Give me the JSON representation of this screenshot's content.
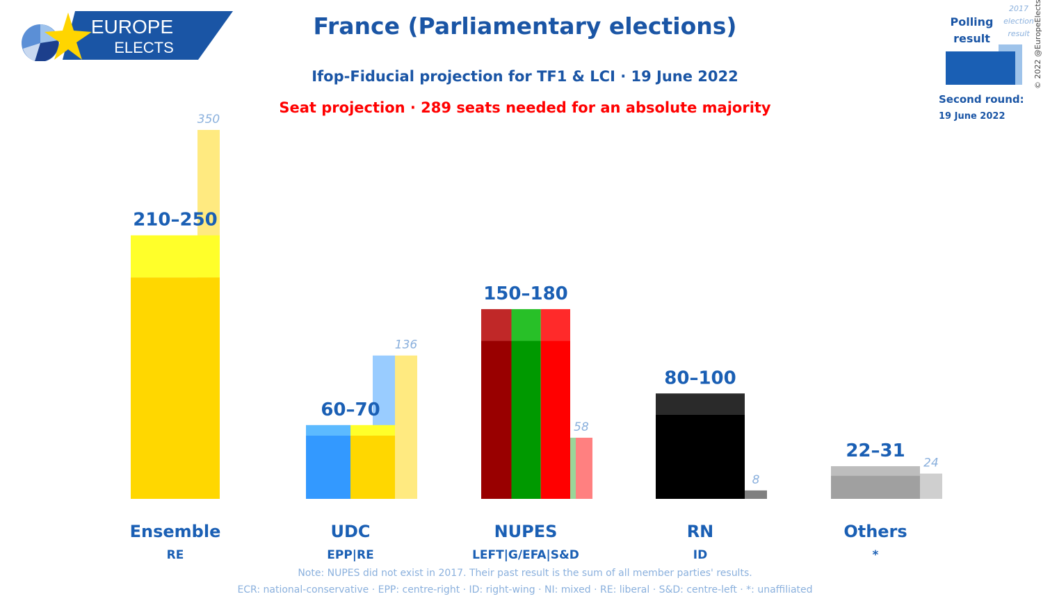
{
  "header": {
    "logo_line1": "EUROPE",
    "logo_line2": "ELECTS",
    "title": "France (Parliamentary elections)",
    "subtitle": "Ifop-Fiducial projection for TF1 & LCI · 19 June 2022",
    "majority_note": "Seat projection · 289 seats needed for an absolute majority"
  },
  "legend": {
    "polling_label": "Polling result",
    "past_label": "2017 election result",
    "second_round_label": "Second round:",
    "second_round_date": "19 June 2022",
    "copyright": "© 2022 @EuropeElects"
  },
  "footnotes": {
    "note": "Note: NUPES did not exist in 2017. Their past result is the sum of all member parties' results.",
    "groups": "ECR: national-conservative · EPP: centre-right · ID: right-wing · NI: mixed · RE: liberal · S&D: centre-left · *: unaffiliated"
  },
  "colors": {
    "brand_blue": "#1a55a5",
    "majority_red": "#ff0000",
    "past_label": "#8ab0dd"
  },
  "chart_data": {
    "type": "bar",
    "ylim": [
      0,
      350
    ],
    "categories": [
      {
        "name": "Ensemble",
        "group": "RE",
        "label": "210–250",
        "low": 210,
        "high": 250,
        "segments": [
          {
            "color_low": "#ffd700",
            "color_high": "#ffff2a",
            "share": 1
          }
        ],
        "past": [
          {
            "value": 350,
            "color": "#ffea80"
          }
        ],
        "past_label": "350"
      },
      {
        "name": "UDC",
        "group": "EPP|RE",
        "label": "60–70",
        "low": 60,
        "high": 70,
        "segments": [
          {
            "color_low": "#3399ff",
            "color_high": "#5cbaff",
            "share": 0.5
          },
          {
            "color_low": "#ffd700",
            "color_high": "#ffff2a",
            "share": 0.5
          }
        ],
        "past": [
          {
            "value": 136,
            "color": "#99ccff"
          },
          {
            "value": 136,
            "color": "#ffea80"
          }
        ],
        "past_label": "136"
      },
      {
        "name": "NUPES",
        "group": "LEFT|G/EFA|S&D",
        "label": "150–180",
        "low": 150,
        "high": 180,
        "segments": [
          {
            "color_low": "#990000",
            "color_high": "#c02828",
            "share": 0.34
          },
          {
            "color_low": "#009900",
            "color_high": "#28c028",
            "share": 0.33
          },
          {
            "color_low": "#ff0000",
            "color_high": "#ff2a2a",
            "share": 0.33
          }
        ],
        "past": [
          {
            "value": 58,
            "color": "#99d699",
            "frac": 0.25
          },
          {
            "value": 58,
            "color": "#ff8080",
            "frac": 0.75
          }
        ],
        "past_label": "58"
      },
      {
        "name": "RN",
        "group": "ID",
        "label": "80–100",
        "low": 80,
        "high": 100,
        "segments": [
          {
            "color_low": "#000000",
            "color_high": "#2a2a2a",
            "share": 1
          }
        ],
        "past": [
          {
            "value": 8,
            "color": "#808080"
          }
        ],
        "past_label": "8"
      },
      {
        "name": "Others",
        "group": "*",
        "label": "22–31",
        "low": 22,
        "high": 31,
        "segments": [
          {
            "color_low": "#a0a0a0",
            "color_high": "#bdbdbd",
            "share": 1
          }
        ],
        "past": [
          {
            "value": 24,
            "color": "#cfcfcf"
          }
        ],
        "past_label": "24"
      }
    ]
  }
}
